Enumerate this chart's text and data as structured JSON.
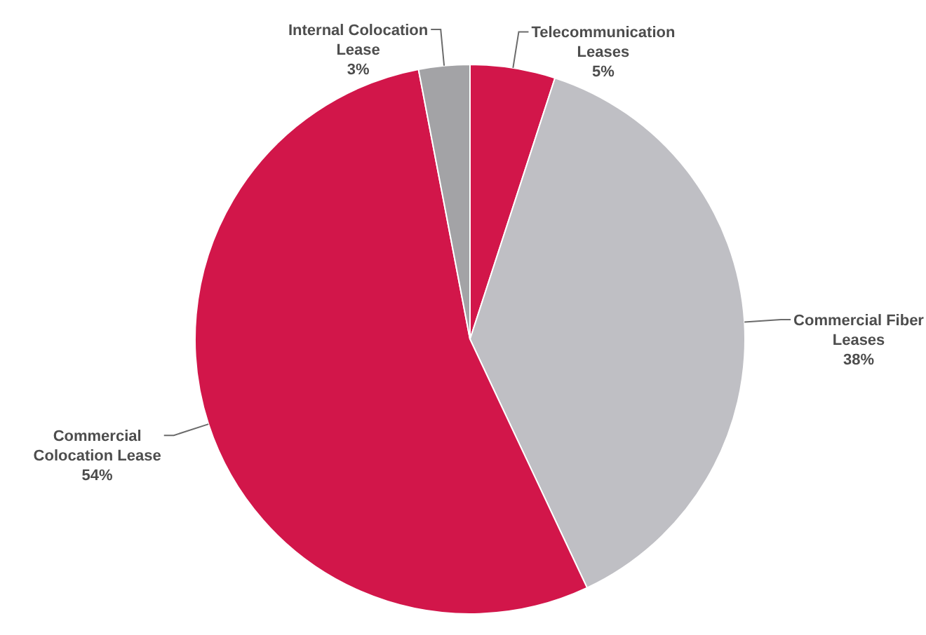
{
  "chart_data": {
    "type": "pie",
    "categories": [
      "Telecommunication Leases",
      "Commercial Fiber Leases",
      "Commercial Colocation Lease",
      "Internal Colocation Lease"
    ],
    "values": [
      5,
      38,
      54,
      3
    ],
    "colors": [
      "#d2164a",
      "#bfbfc4",
      "#d2164a",
      "#a3a3a6"
    ],
    "value_labels": [
      "5%",
      "38%",
      "54%",
      "3%"
    ]
  }
}
